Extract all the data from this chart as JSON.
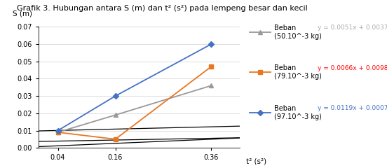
{
  "title": "Grafik 3. Hubungan antara S (m) dan t² (s²) pada lempeng besar dan kecil",
  "xlabel": "t² (s²)",
  "ylabel": "S (m)",
  "x": [
    0.04,
    0.16,
    0.36
  ],
  "series": [
    {
      "name_line1": "Beban",
      "name_line2": "(50.10^-3 kg)",
      "y": [
        0.009,
        0.019,
        0.036
      ],
      "color": "#999999",
      "marker": "^",
      "eq": "y = 0.0051x + 0.0037",
      "eq_color": "#AAAAAA"
    },
    {
      "name_line1": "Beban",
      "name_line2": "(79.10^-3 kg)",
      "y": [
        0.009,
        0.005,
        0.047
      ],
      "color": "#E87722",
      "marker": "s",
      "eq": "y = 0.0066x + 0.0098",
      "eq_color": "#FF0000"
    },
    {
      "name_line1": "Beban",
      "name_line2": "(97.10^-3 kg)",
      "y": [
        0.01,
        0.03,
        0.06
      ],
      "color": "#4472C4",
      "marker": "D",
      "eq": "y = 0.0119x + 0.0007",
      "eq_color": "#4472C4"
    }
  ],
  "trend_slopes": [
    0.0051,
    0.0066,
    0.0119
  ],
  "trend_intercepts": [
    0.0037,
    0.0098,
    0.0007
  ],
  "trend_color": "#000000",
  "ylim": [
    0,
    0.07
  ],
  "yticks": [
    0,
    0.01,
    0.02,
    0.03,
    0.04,
    0.05,
    0.06,
    0.07
  ],
  "xticks": [
    0.04,
    0.16,
    0.36
  ],
  "background_color": "#ffffff"
}
